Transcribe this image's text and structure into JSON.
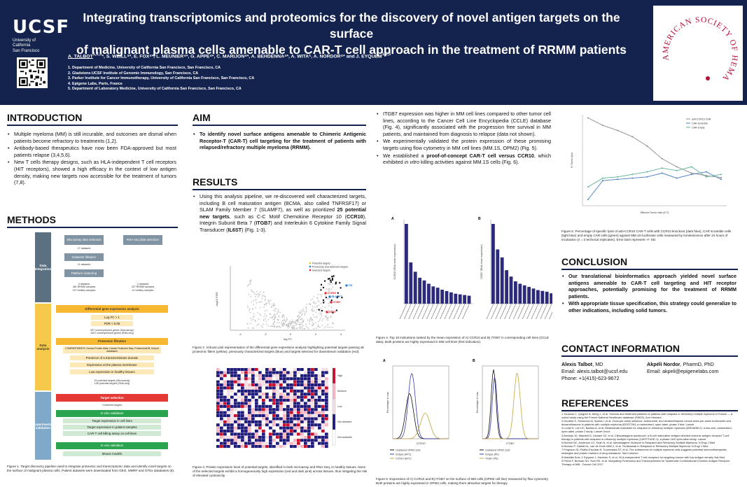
{
  "header": {
    "institution_logo": "UCSF",
    "institution_subtitle_line1": "University of California",
    "institution_subtitle_line2": "San Francisco",
    "title_line1": "Integrating transcriptomics and proteomics for the discovery of novel antigen targets on the surface",
    "title_line2": "of malignant plasma cells amenable to CAR-T cell approach in the treatment of RRMM patients",
    "first_author": "A. TALBOT",
    "first_author_sup": "1,2,3",
    "other_authors": "*, S. WEILL⁴*, E. FOX⁴*, L. MEUNIER⁴*, G. APPE⁴*, C. MARIJON⁴*, A. BEHDENNA⁴*, A. WITA⁵, A. NORDOR⁴* and J. EYQUEM",
    "last_sup": "1,2,3",
    "affiliations": [
      "1. Department of Medicine, University of California San Francisco, San Francisco, CA",
      "2. Gladstone-UCSF Institute of Genomic Immunology, San Francisco, CA",
      "3. Parker Institute for Cancer Immunotherapy, University of California San Francisco, San Francisco, CA",
      "4. Epigene Labs, Paris, France",
      "5. Department of Laboratory Medicine, University of California San Francisco, San Francisco, CA"
    ],
    "society_logo": "AMERICAN SOCIETY OF HEMATOLOGY"
  },
  "intro": {
    "heading": "INTRODUCTION",
    "bullets": [
      "Multiple myeloma (MM) is still incurable, and outcomes are dismal when patients become refractory to treatments (1,2).",
      "Antibody-based therapeutics have now been FDA-approved but most patients relapse (3,4,5,6).",
      "New T cells therapy designs, such as HLA-independent T cell receptors (HIT receptors), showed a high efficacy in the context of low antigen density, making new targets now accessible for the treatment of tumors (7,8)."
    ]
  },
  "methods": {
    "heading": "METHODS",
    "bands": [
      "Data Integration",
      "Data analysis",
      "Experimental validation"
    ],
    "microarray_box": "Microarray data selection",
    "rnaseq_box": "RNA-seq data selection",
    "n17": "17 datasets",
    "dataset_filtration": "Datasets filtration",
    "n11": "11 datasets",
    "platform_clustering": "Platform clustering",
    "micro_counts": "9 datasets\n461 RRMM samples\n137 healthy samples",
    "rna_counts": "2 datasets\n327 RRMM samples\n41 healthy samples",
    "dge": "Differential gene expression analysis",
    "logfc": "Log FC > 1",
    "fdr": "FDR < 0.05",
    "overexpressed": "907 overexpressed genes (Microarray)\n1607 overexpressed genes (RNA-seq)",
    "proteomic": "Proteomic filtration",
    "compartments": "COMPARTMENTS, Human Protein Atlas, Human Proteome Map, ProteomicsDB, Uniprot databases",
    "transmembrane": "Presence of a transmembrane domain",
    "membrane_expr": "Expression at the plasma membrane",
    "low_healthy": "Low expression in healthy tissues",
    "potential_targets": "29 potential targets (Microarray)\n106 potential targets (RNA-seq)",
    "target_selection": "Target selection",
    "n3": "3 selected targets",
    "in_vitro": "In vitro validation",
    "cell_lines": "Target expression in cell lines",
    "patient_samples": "Target expression in patient samples",
    "cart_kill": "CAR-T cell killing assay on cell lines",
    "in_vivo": "In vivo validation",
    "mouse_models": "Mouse models",
    "caption": "Figure 1. Target discovery pipeline used to integrate proteomic and transcriptomic data and identify novel targets on the surface of malignant plasma cells. Patient datasets were downloaded from GEO, MMRF and GTEx databases (9)."
  },
  "aim": {
    "heading": "AIM",
    "text": "To identify novel surface antigens amenable to Chimeric Antigenic Receptor-T (CAR-T) cell targeting for the treatment of patients with relapsed/refractory multiple myeloma (RRMM)."
  },
  "results": {
    "heading": "RESULTS",
    "para_a": "Using this analysis pipeline, we re-discovered well characterized targets, including B cell maturation antigen (BCMA, also called TNFRSF17) or SLAM Family Member 7 (SLAMF7), as well as prioritized ",
    "para_b": "25 potential new targets",
    "para_c": ", such as C-C Motif Chemokine Receptor 10 (",
    "ccr10": "CCR10",
    "para_d": "), Integrin Subunit Beta 7 (",
    "itgb7": "ITGB7",
    "para_e": ") and Interleukin 6 Cytokine Family Signal Transducer (",
    "il6st": "IL6ST",
    "para_f": ") (Fig. 1-3).",
    "fig2_caption": "Figure 2. Volcano plot representation of the differential gene expression analysis highlighting potential targets passing all proteomic filters (yellow), previously characterized targets (blue) and targets selected for downstream validation (red).",
    "fig3_caption": "Figure 3. Protein expression level of potential targets, identified in both microarray and RNA-Seq, in healthy tissues. None of the selected targets exhibit a homogeneously high expression (red and dark pink) across tissues, thus mitigating the risk of elevated cytotoxicity."
  },
  "volcano": {
    "legend": [
      "Potential targets",
      "Previously characterized targets",
      "Selected targets"
    ],
    "labels": [
      "TNFRSF17",
      "SLAMF7",
      "ITGB7",
      "CCR10",
      "IL6ST"
    ],
    "xlabel": "log FC",
    "ylabel": "-log10 FDR",
    "xticks": [
      "-4",
      "-2",
      "0",
      "2",
      "4"
    ],
    "colors": {
      "potential": "#f5c518",
      "previous": "#1f78d1",
      "selected": "#e0202a",
      "background": "#b9b9b9"
    }
  },
  "heatmap": {
    "legend": [
      "High",
      "Medium",
      "Low",
      "Not detected",
      "Not available"
    ],
    "colors": {
      "high": "#c8102e",
      "medium": "#f7b6c2",
      "low": "#f1dfe4",
      "not_detected": "#1f1b7a",
      "not_available": "#ffffff"
    }
  },
  "col3": {
    "bullets": [
      "ITGB7 expression was higher in MM cell lines compared to other tumor cell lines, according to the Cancer Cell Line Encyclopedia (CCLE) database (Fig. 4), significantly associated with the progression free survival in MM patients, and maintained from diagnosis to relapse (data not shown).",
      "We experimentally validated the protein expression of these promising targets using flow cytometry in MM cell lines (MM.1S, OPM2) (Fig. 5)."
    ],
    "b3_a": "We established a ",
    "b3_b": "proof-of-concept CAR-T cell versus CCR10",
    "b3_c": ", which exhibited ",
    "b3_d": "in vitro",
    "b3_e": " killing activities against MM.1S cells (Fig. 6).",
    "fig4_caption": "Figure 4. Top 15 indications ranked by the mean expression of A) CCR10 and B) ITGB7 in corresponding cell lines (CCLE data). Both proteins are highly expressed in MM cell lines (first indication).",
    "fig5_caption": "Figure 5. Expression of A) CCR10 and B) ITGB7 on the surface of MM cells (OPM2 cell line) measured by flow cytometry. Both proteins are highly expressed in OPM2 cells, making them attractive targets for therapy.",
    "fig4_a_label": "A",
    "fig4_b_label": "B",
    "fig4_a_ylabel": "CCR10 (RNA mean expression)",
    "fig4_b_ylabel": "ITGB7 (RNA mean expression)",
    "fig5_a_label": "A",
    "fig5_b_label": "B",
    "fig5_a_xlabel": "CCR10",
    "fig5_b_xlabel": "ITGB7",
    "fig5_legend_a": [
      "Unstained OPM2 cells",
      "Isotype (APC)",
      "CCR10 (APC)"
    ],
    "fig5_legend_b": [
      "Unstained OPM2 cells",
      "Isotype (PE)",
      "ITGB7 (PE)"
    ],
    "fig5_ylabel": "Percentage of max"
  },
  "col4": {
    "fig6_caption": "Figure 6. Percentage of specific lysis of anti-CCR10 CAR-T cells with CCR10 knockout (dark blue), CAR scramble cells (light blue) and empty CAR cells (green) against MM.1S-luciferase cells measured by luminescence after 24 hours of incubation (n = 3 technical replicates). Error bars represent +/- SD.",
    "fig6_legend": [
      "anti-CCR10 CAR",
      "CAR scramble",
      "CAR empty"
    ],
    "fig6_xlabel": "Effector:Tumor ratio (E:T)",
    "fig6_ylabel": "% Tumor lysis",
    "conclusion_heading": "CONCLUSION",
    "conclusion": [
      "Our translational bioinformatics approach yielded novel surface antigens amenable to CAR-T cell targeting and HIT receptor approaches, potentially promising for the treatment of RRMM patients.",
      "With appropriate tissue specification, this strategy could generalize to other indications, including solid tumors."
    ],
    "contact_heading": "CONTACT INFORMATION",
    "contact1_name": "Alexis Talbot",
    "contact1_deg": ", MD",
    "contact1_email": "Email: alexis.talbot@ucsf.edu",
    "contact1_phone": "Phone: +1(415)-623-9672",
    "contact2_name": "Akpéli Nordor",
    "contact2_deg": ", PharmD, PhD",
    "contact2_email": "Email: akpeli@epigenelabs.com",
    "references_heading": "REFERENCES",
    "references": [
      "1.Touzeau C, Quignot N, Meng J, et al. Survival and treatment patterns of patients with relapsed or refractory multiple myeloma in France — a cohort study using the French National Healthcare database (SNDS). Ann Hematol",
      "2.Gnoticki S, Simonova M, Spicka I, et al. Once-per-week selinexor, bortezomib, and dexamethasone versus twice-per-week bortezomib and dexamethasone in patients with multiple myeloma (BOSTON): a randomised, open-label, phase 3 trial. Lancet",
      "3.Lonial S, Lee HC, Badros A, et al. Belantamab mafodotin for relapsed or refractory multiple myeloma (DREAMM-2): a two-arm, randomised, open-label, phase 2 study. Lancet Oncol",
      "4.Berdeja JG, Madduri D, Usmani SZ, et al. Ciltacabtagene autoleucel, a B-cell maturation antigen-directed chimeric antigen receptor T-cell therapy in patients with relapsed or refractory multiple myeloma (CARTITUDE-1): a phase 1b/2 open-label study. Lancet",
      "5.Munshi NC, Anderson LD, Shah N, et al. Idecabtagene Vicleucel in Relapsed and Refractory Multiple Myeloma. N Engl J Med",
      "6.Moreau P, Garfall AL, van de Donk NWCJ, et al. Teclistamab in Relapsed or Refractory Multiple Myeloma. N Engl J Med",
      "7.Ferguson ID, Patiño-Escobar B, Tuomivaara ST, et al. The surfaceome of multiple myeloma cells suggests potential immunotherapeutic strategies and protein markers of drug resistance. Nat Commun",
      "8.Mansilla-Soto J, Eyquem J, Haubner S, et al. HLA-independent T cell receptors for targeting tumors with low antigen density. Nat Med",
      "9.Perna F, Berman SH, Soni RK, et al. Integrating Proteomics and Transcriptomics for Systematic Combinatorial Chimeric Antigen Receptor Therapy of AML. Cancer Cell 2017"
    ]
  }
}
